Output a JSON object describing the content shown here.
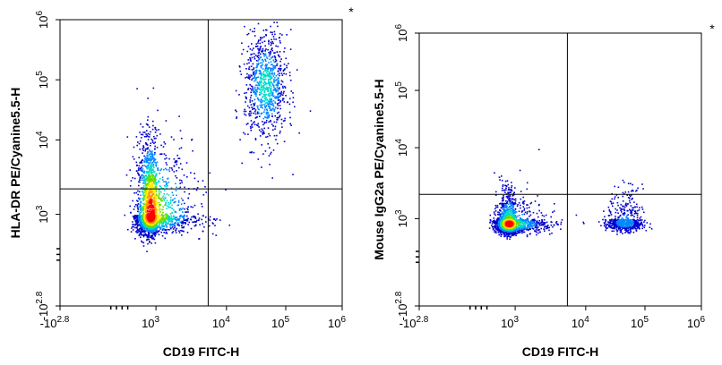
{
  "chart_data": [
    {
      "type": "scatter",
      "subtype": "flow-cytometry-density-dot-plot",
      "xlabel": "CD19 FITC-H",
      "ylabel": "HLA-DR PE/Cyanine5.5-H",
      "marker": "*",
      "x_scale": "biexponential",
      "y_scale": "biexponential",
      "xlim": [
        "-10^2.8",
        "10^6"
      ],
      "ylim": [
        "-10^2.8",
        "10^6"
      ],
      "x_ticks": [
        {
          "base": "-10",
          "exp": "2.8"
        },
        {
          "base": "10",
          "exp": "3"
        },
        {
          "base": "10",
          "exp": "4"
        },
        {
          "base": "10",
          "exp": "5"
        },
        {
          "base": "10",
          "exp": "6"
        }
      ],
      "y_ticks": [
        {
          "base": "-10",
          "exp": "2.8"
        },
        {
          "base": "10",
          "exp": "3"
        },
        {
          "base": "10",
          "exp": "4"
        },
        {
          "base": "10",
          "exp": "5"
        },
        {
          "base": "10",
          "exp": "6"
        }
      ],
      "gate": {
        "x": 5500,
        "y": 2200
      },
      "colormap": [
        "#0000cc",
        "#0088ff",
        "#00ddcc",
        "#66dd00",
        "#ffee00",
        "#ff9900",
        "#ff0000"
      ],
      "populations": [
        {
          "x_center": 450,
          "y_center": 800,
          "x_spread_decades": 0.42,
          "y_spread_decades": 0.55,
          "relative_density": 1.0
        },
        {
          "x_center": 45000,
          "y_center": 80000,
          "x_spread_decades": 0.18,
          "y_spread_decades": 0.45,
          "relative_density": 0.35
        }
      ]
    },
    {
      "type": "scatter",
      "subtype": "flow-cytometry-density-dot-plot",
      "xlabel": "CD19 FITC-H",
      "ylabel": "Mouse IgG2a PE/Cyanine5.5-H",
      "marker": "*",
      "x_scale": "biexponential",
      "y_scale": "biexponential",
      "xlim": [
        "-10^2.8",
        "10^6"
      ],
      "ylim": [
        "-10^2.8",
        "10^6"
      ],
      "x_ticks": [
        {
          "base": "-10",
          "exp": "2.8"
        },
        {
          "base": "10",
          "exp": "3"
        },
        {
          "base": "10",
          "exp": "4"
        },
        {
          "base": "10",
          "exp": "5"
        },
        {
          "base": "10",
          "exp": "6"
        }
      ],
      "y_ticks": [
        {
          "base": "-10",
          "exp": "2.8"
        },
        {
          "base": "10",
          "exp": "3"
        },
        {
          "base": "10",
          "exp": "4"
        },
        {
          "base": "10",
          "exp": "5"
        },
        {
          "base": "10",
          "exp": "6"
        }
      ],
      "gate": {
        "x": 5500,
        "y": 2200
      },
      "colormap": [
        "#0000cc",
        "#0088ff",
        "#00ddcc",
        "#66dd00",
        "#ffee00",
        "#ff9900",
        "#ff0000"
      ],
      "populations": [
        {
          "x_center": 400,
          "y_center": 500,
          "x_spread_decades": 0.38,
          "y_spread_decades": 0.3,
          "relative_density": 1.0
        },
        {
          "x_center": 45000,
          "y_center": 600,
          "x_spread_decades": 0.15,
          "y_spread_decades": 0.3,
          "relative_density": 0.25
        }
      ]
    }
  ]
}
